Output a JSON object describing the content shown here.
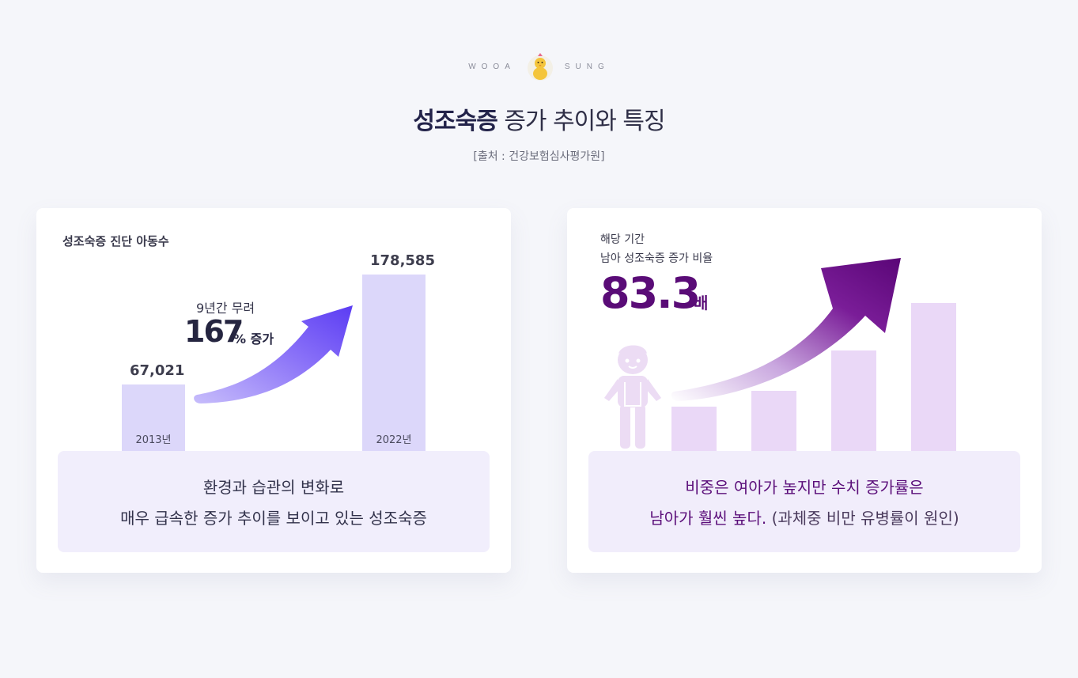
{
  "brand": {
    "left": "WOOA",
    "right": "SUNG",
    "logo_icon": "chick-mascot-icon"
  },
  "title": {
    "strong": "성조숙증",
    "rest": " 증가 추이와 특징"
  },
  "source": "[출처 : 건강보험심사평가원]",
  "left_card": {
    "label": "성조숙증 진단 아동수",
    "growth_sub": "9년간 무려",
    "growth_big": "167",
    "growth_unit": "% 증가",
    "callout_line1": "환경과 습관의 변화로",
    "callout_line2": "매우 급속한 증가 추이를 보이고 있는 성조숙증",
    "arrow_icon": "up-arrow-icon"
  },
  "right_card": {
    "label_line1": "해당 기간",
    "label_line2": "남아 성조숙증 증가 비율",
    "ratio_num": "83.3",
    "ratio_unit": "배",
    "callout_line1": "비중은 여아가 높지만 수치 증가률은",
    "callout_line2_hl": "남아가 훨씬 높다.",
    "callout_line2_note": " (과체중 비만 유병률이 원인)",
    "boy_icon": "boy-child-icon",
    "arrow_icon": "up-arrow-icon"
  },
  "colors": {
    "bar_light": "#dcd7fa",
    "arrow_blue": "#6a4cf5",
    "accent_purple": "#5a0c77",
    "pbar": "#ead8f7"
  },
  "chart_data": [
    {
      "type": "bar",
      "title": "성조숙증 진단 아동수",
      "categories": [
        "2013년",
        "2022년"
      ],
      "values": [
        67021,
        178585
      ],
      "value_labels": [
        "67,021",
        "178,585"
      ],
      "ylim": [
        0,
        200000
      ],
      "annotation": "9년간 무려 167% 증가"
    }
  ]
}
